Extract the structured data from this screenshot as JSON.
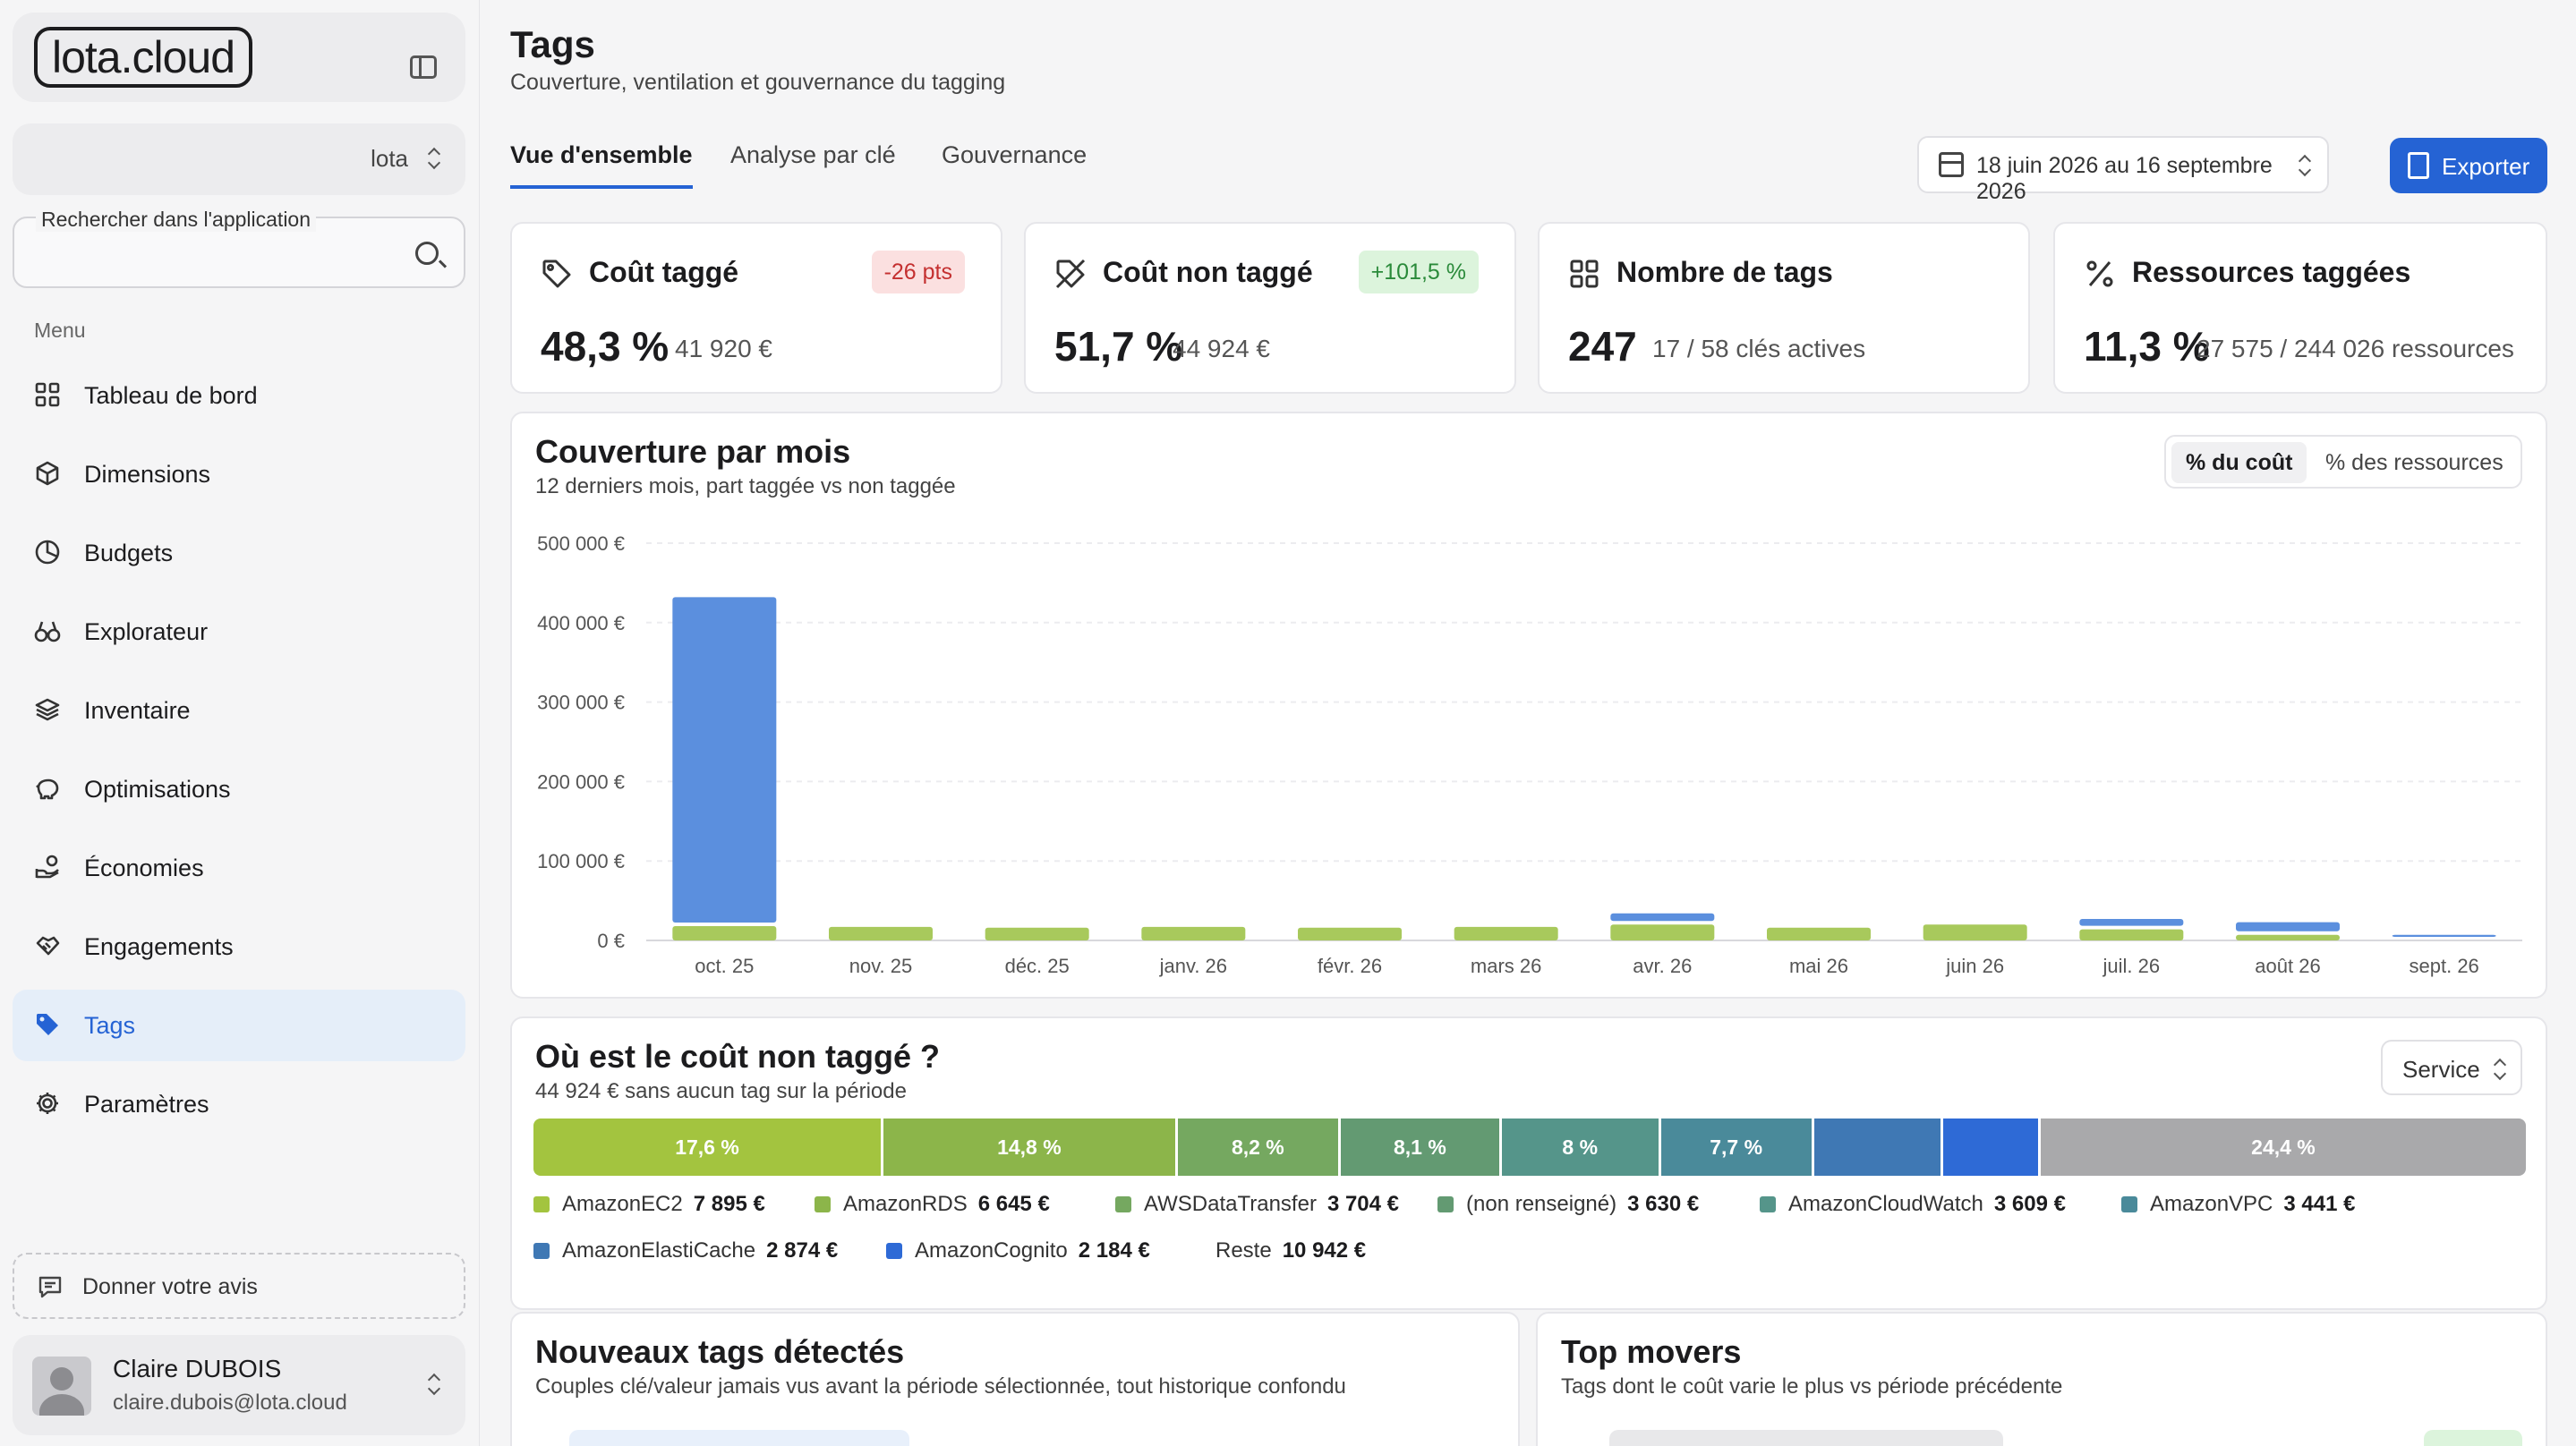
{
  "app": {
    "logo_text": "lota.cloud",
    "org": "lota"
  },
  "search": {
    "label": "Rechercher dans l'application",
    "placeholder": ""
  },
  "menu": {
    "heading": "Menu",
    "items": [
      {
        "label": "Tableau de bord",
        "icon": "grid-icon"
      },
      {
        "label": "Dimensions",
        "icon": "cube-icon"
      },
      {
        "label": "Budgets",
        "icon": "pie-icon"
      },
      {
        "label": "Explorateur",
        "icon": "binoculars-icon"
      },
      {
        "label": "Inventaire",
        "icon": "layers-icon"
      },
      {
        "label": "Optimisations",
        "icon": "piggy-bank-icon"
      },
      {
        "label": "Économies",
        "icon": "hand-coins-icon"
      },
      {
        "label": "Engagements",
        "icon": "handshake-icon"
      },
      {
        "label": "Tags",
        "icon": "tag-icon",
        "active": true
      },
      {
        "label": "Paramètres",
        "icon": "gear-icon"
      }
    ]
  },
  "feedback": {
    "label": "Donner votre avis"
  },
  "user": {
    "name": "Claire DUBOIS",
    "email": "claire.dubois@lota.cloud"
  },
  "header": {
    "title": "Tags",
    "subtitle": "Couverture, ventilation et gouvernance du tagging"
  },
  "tabs": [
    "Vue d'ensemble",
    "Analyse par clé",
    "Gouvernance"
  ],
  "date_range": "18 juin 2026 au 16 septembre 2026",
  "export_label": "Exporter",
  "kpis": [
    {
      "title": "Coût taggé",
      "value": "48,3 %",
      "sub": "41 920 €",
      "badge": "-26 pts",
      "badge_type": "red",
      "icon": "tag-icon"
    },
    {
      "title": "Coût non taggé",
      "value": "51,7 %",
      "sub": "44 924 €",
      "badge": "+101,5 %",
      "badge_type": "green",
      "icon": "tag-off-icon"
    },
    {
      "title": "Nombre de tags",
      "value": "247",
      "sub": "17 / 58 clés actives",
      "badge": "",
      "icon": "grid-icon"
    },
    {
      "title": "Ressources taggées",
      "value": "11,3 %",
      "sub": "27 575 / 244 026 ressources",
      "badge": "",
      "icon": "percent-icon"
    }
  ],
  "coverage": {
    "title": "Couverture par mois",
    "subtitle": "12 derniers mois, part taggée vs non taggée",
    "toggle": [
      "% du coût",
      "% des ressources"
    ],
    "active_toggle": 0
  },
  "chart_data": {
    "type": "bar",
    "stacked": true,
    "categories": [
      "oct. 25",
      "nov. 25",
      "déc. 25",
      "janv. 26",
      "févr. 26",
      "mars 26",
      "avr. 26",
      "mai 26",
      "juin 26",
      "juil. 26",
      "août 26",
      "sept. 26"
    ],
    "y_ticks": [
      "0 €",
      "100 000 €",
      "200 000 €",
      "300 000 €",
      "400 000 €",
      "500 000 €"
    ],
    "ylim": [
      0,
      500000
    ],
    "series": [
      {
        "color": "#a8c95c",
        "values": [
          18000,
          17000,
          16000,
          17000,
          16000,
          17000,
          20000,
          16000,
          20000,
          14000,
          7000,
          0
        ]
      },
      {
        "color": "#5b8fde",
        "values": [
          414000,
          1000,
          1000,
          1000,
          1000,
          1000,
          14000,
          2000,
          3000,
          13000,
          16000,
          7000
        ]
      }
    ],
    "grid": true
  },
  "untagged": {
    "title": "Où est le coût non taggé ?",
    "subtitle": "44 924 € sans aucun tag sur la période",
    "select": "Service",
    "segments": [
      {
        "label": "17,6 %",
        "share": 17.6,
        "color": "#a3c43f"
      },
      {
        "label": "14,8 %",
        "share": 14.8,
        "color": "#8cb54a"
      },
      {
        "label": "8,2 %",
        "share": 8.2,
        "color": "#75a860"
      },
      {
        "label": "8,1 %",
        "share": 8.1,
        "color": "#639a72"
      },
      {
        "label": "8 %",
        "share": 8.0,
        "color": "#55958a"
      },
      {
        "label": "7,7 %",
        "share": 7.7,
        "color": "#4a8a9a"
      },
      {
        "label": "",
        "share": 6.5,
        "color": "#3f78b4"
      },
      {
        "label": "",
        "share": 4.9,
        "color": "#2e6ad6"
      },
      {
        "label": "24,4 %",
        "share": 24.4,
        "color": "#a9a9ab"
      }
    ],
    "legend": [
      {
        "name": "AmazonEC2",
        "value": "7 895 €",
        "color": "#a3c43f"
      },
      {
        "name": "AmazonRDS",
        "value": "6 645 €",
        "color": "#8cb54a"
      },
      {
        "name": "AWSDataTransfer",
        "value": "3 704 €",
        "color": "#75a860"
      },
      {
        "name": "(non renseigné)",
        "value": "3 630 €",
        "color": "#639a72"
      },
      {
        "name": "AmazonCloudWatch",
        "value": "3 609 €",
        "color": "#55958a"
      },
      {
        "name": "AmazonVPC",
        "value": "3 441 €",
        "color": "#4a8a9a"
      },
      {
        "name": "AmazonElastiCache",
        "value": "2 874 €",
        "color": "#3f78b4"
      },
      {
        "name": "AmazonCognito",
        "value": "2 184 €",
        "color": "#2e6ad6"
      },
      {
        "name": "Reste",
        "value": "10 942 €",
        "color": ""
      }
    ]
  },
  "new_tags": {
    "title": "Nouveaux tags détectés",
    "subtitle": "Couples clé/valeur jamais vus avant la période sélectionnée, tout historique confondu"
  },
  "top_movers": {
    "title": "Top movers",
    "subtitle": "Tags dont le coût varie le plus vs période précédente"
  }
}
